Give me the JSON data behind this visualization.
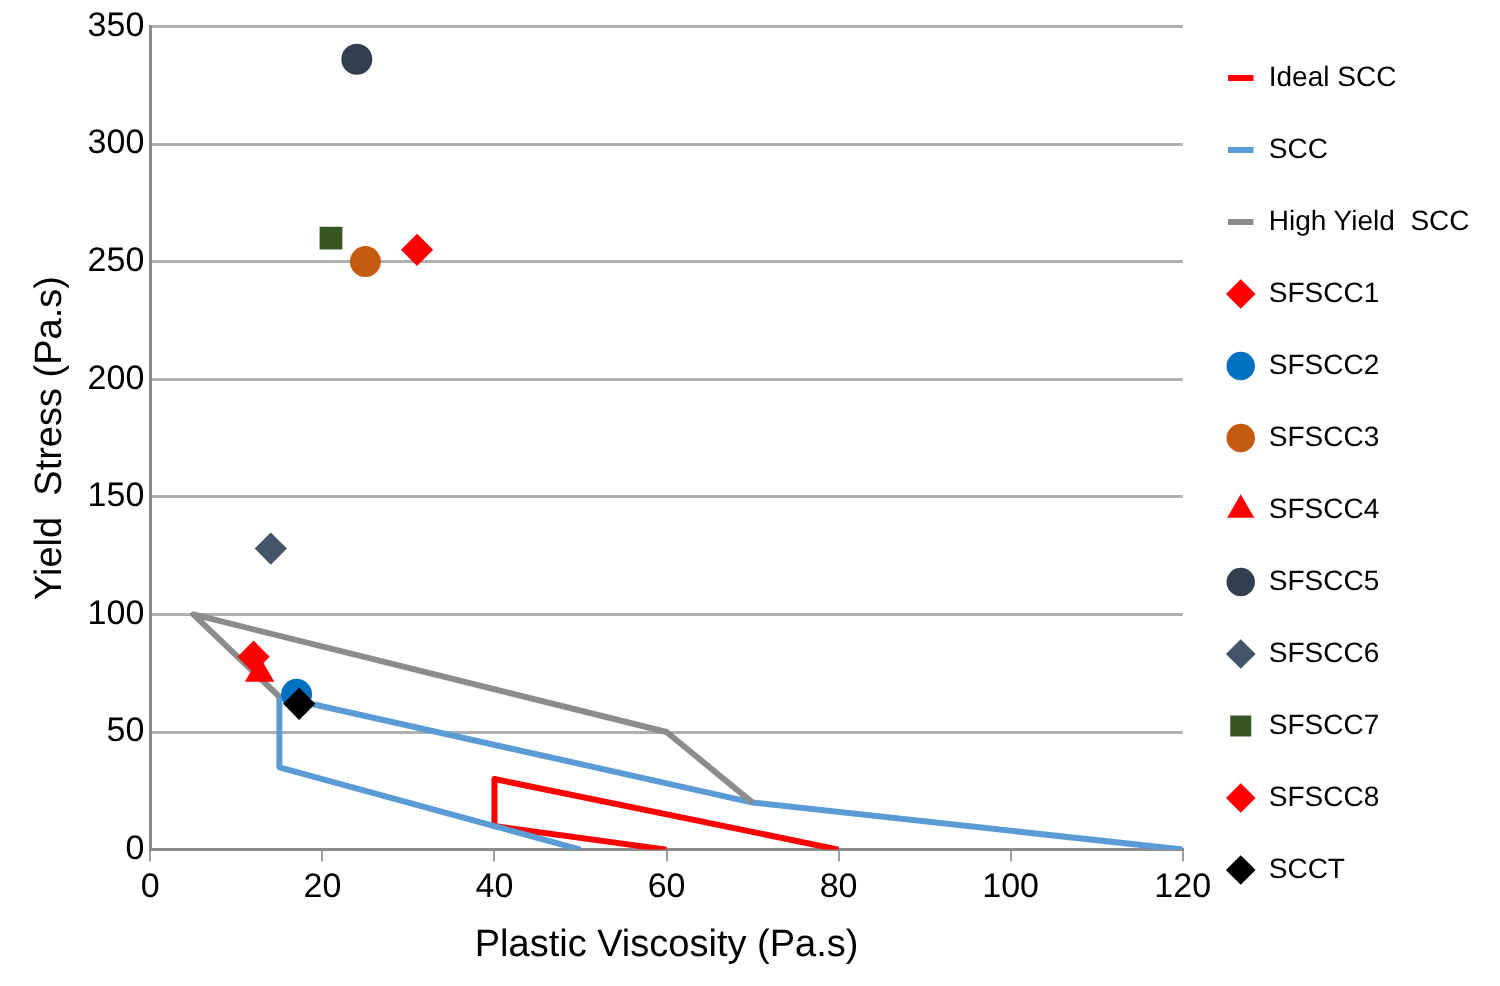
{
  "chart_data": {
    "type": "scatter",
    "xlabel": "Plastic Viscosity (Pa.s)",
    "ylabel": "Yield  Stress (Pa.s)",
    "xlim": [
      0,
      120
    ],
    "xticks": [
      0,
      20,
      40,
      60,
      80,
      100,
      120
    ],
    "ylim": [
      0,
      350
    ],
    "yticks": [
      0,
      50,
      100,
      150,
      200,
      250,
      300,
      350
    ],
    "grid": "y",
    "legend": "right",
    "series": [
      {
        "name": "Ideal SCC",
        "type": "line",
        "color": "#ff0000",
        "marker": "none",
        "x": [
          60,
          40,
          40,
          80
        ],
        "values": [
          0,
          10,
          30,
          0
        ]
      },
      {
        "name": "SCC",
        "type": "line",
        "color": "#5b9bd5",
        "marker": "none",
        "x": [
          50,
          15,
          15,
          70,
          120
        ],
        "values": [
          0,
          35,
          65,
          20,
          0
        ]
      },
      {
        "name": "High Yield  SCC",
        "type": "line",
        "color": "#8c8c8c",
        "marker": "none",
        "x": [
          15,
          5,
          60,
          70
        ],
        "values": [
          65,
          100,
          50,
          20
        ]
      },
      {
        "name": "SFSCC1",
        "type": "scatter",
        "color": "#ff0000",
        "marker": "diamond",
        "x": [
          31
        ],
        "values": [
          255
        ]
      },
      {
        "name": "SFSCC2",
        "type": "scatter",
        "color": "#0070c0",
        "marker": "circle",
        "x": [
          17
        ],
        "values": [
          66
        ]
      },
      {
        "name": "SFSCC3",
        "type": "scatter",
        "color": "#c55a11",
        "marker": "circle",
        "x": [
          25
        ],
        "values": [
          250
        ]
      },
      {
        "name": "SFSCC4",
        "type": "scatter",
        "color": "#ff0000",
        "marker": "triangle",
        "x": [
          12.7
        ],
        "values": [
          75
        ]
      },
      {
        "name": "SFSCC5",
        "type": "scatter",
        "color": "#323f4f",
        "marker": "circle",
        "x": [
          24
        ],
        "values": [
          336
        ]
      },
      {
        "name": "SFSCC6",
        "type": "scatter",
        "color": "#44546a",
        "marker": "diamond",
        "x": [
          14
        ],
        "values": [
          128
        ]
      },
      {
        "name": "SFSCC7",
        "type": "scatter",
        "color": "#375623",
        "marker": "square",
        "x": [
          21
        ],
        "values": [
          260
        ]
      },
      {
        "name": "SFSCC8",
        "type": "scatter",
        "color": "#ff0000",
        "marker": "diamond",
        "x": [
          12
        ],
        "values": [
          82
        ]
      },
      {
        "name": "SCCT",
        "type": "scatter",
        "color": "#000000",
        "marker": "diamond",
        "x": [
          17.3
        ],
        "values": [
          62
        ]
      }
    ]
  }
}
